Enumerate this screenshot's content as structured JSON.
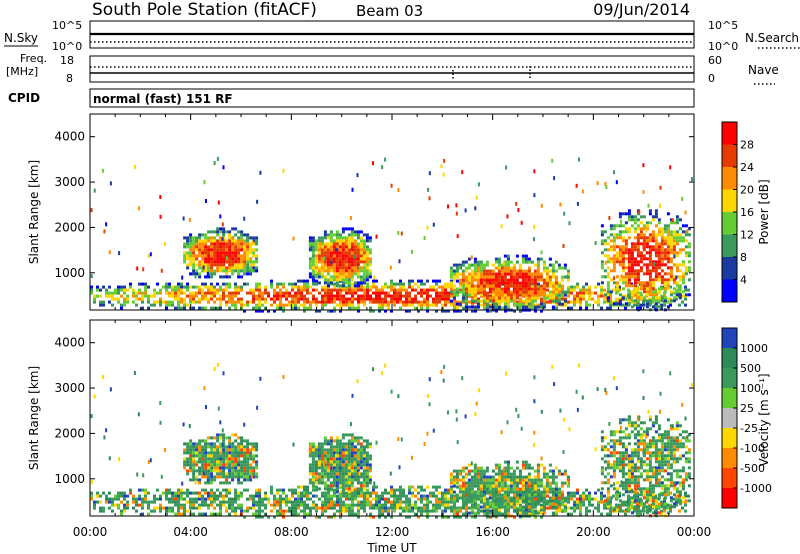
{
  "header": {
    "station": "South Pole Station (fitACF)",
    "beam": "Beam 03",
    "date": "09/Jun/2014"
  },
  "strips": {
    "nsky": {
      "left_label": "N.Sky",
      "right_label": "N.Search",
      "left_ticks": [
        "10^5",
        "10^0"
      ],
      "right_ticks": [
        "10^5",
        "10^0"
      ]
    },
    "freq": {
      "left_label": "Freq.",
      "left_unit": "[MHz]",
      "right_label": "Nave",
      "left_ticks": [
        "18",
        "8"
      ],
      "right_ticks": [
        "60",
        "0"
      ]
    },
    "cpid": {
      "label": "CPID",
      "text": "normal (fast) 151 RF"
    }
  },
  "chart_data": [
    {
      "type": "heatmap",
      "name": "power",
      "ylabel": "Slant Range [km]",
      "xlabel": "",
      "xlim": [
        0,
        24
      ],
      "ylim": [
        180,
        4500
      ],
      "x_tick_labels": [
        "00:00",
        "04:00",
        "08:00",
        "12:00",
        "16:00",
        "20:00",
        "00:00"
      ],
      "y_ticks": [
        1000,
        2000,
        3000,
        4000
      ],
      "colorbar": {
        "label": "Power [dB]",
        "ticks": [
          "28",
          "24",
          "20",
          "16",
          "12",
          "8",
          "4"
        ],
        "colors": [
          "#ff0000",
          "#e63b00",
          "#ff8c00",
          "#ffd700",
          "#66cc33",
          "#3a9a5c",
          "#1a3aa0",
          "#0000ff"
        ]
      },
      "features": [
        {
          "t0": 0.0,
          "t1": 23.8,
          "r0": 180,
          "r1": 850,
          "level": 0.35
        },
        {
          "t0": 3.7,
          "t1": 6.6,
          "r0": 900,
          "r1": 2000,
          "level": 0.55
        },
        {
          "t0": 8.7,
          "t1": 11.2,
          "r0": 700,
          "r1": 2000,
          "level": 0.6
        },
        {
          "t0": 14.3,
          "t1": 19.0,
          "r0": 200,
          "r1": 1400,
          "level": 0.45
        },
        {
          "t0": 20.3,
          "t1": 23.8,
          "r0": 200,
          "r1": 2400,
          "level": 0.3
        }
      ]
    },
    {
      "type": "heatmap",
      "name": "velocity",
      "ylabel": "Slant Range [km]",
      "xlabel": "Time UT",
      "xlim": [
        0,
        24
      ],
      "ylim": [
        180,
        4500
      ],
      "x_tick_labels": [
        "00:00",
        "04:00",
        "08:00",
        "12:00",
        "16:00",
        "20:00",
        "00:00"
      ],
      "y_ticks": [
        1000,
        2000,
        3000,
        4000
      ],
      "colorbar": {
        "label": "Velocity [m s⁻¹]",
        "ticks": [
          "1000",
          "500",
          "100",
          "25",
          "-25",
          "-100",
          "-500",
          "-1000"
        ],
        "colors": [
          "#2244bb",
          "#2e8b57",
          "#3a9a5c",
          "#66cc33",
          "#bbbbbb",
          "#ffd700",
          "#ff8c00",
          "#ff4500",
          "#ff0000"
        ]
      },
      "features": [
        {
          "t0": 0.0,
          "t1": 23.8,
          "r0": 180,
          "r1": 850,
          "level": 0.35
        },
        {
          "t0": 3.7,
          "t1": 6.6,
          "r0": 900,
          "r1": 2000,
          "level": 0.55
        },
        {
          "t0": 8.7,
          "t1": 11.2,
          "r0": 700,
          "r1": 2000,
          "level": 0.6
        },
        {
          "t0": 14.3,
          "t1": 19.0,
          "r0": 200,
          "r1": 1400,
          "level": 0.45
        },
        {
          "t0": 20.3,
          "t1": 23.8,
          "r0": 200,
          "r1": 2400,
          "level": 0.3
        }
      ]
    }
  ]
}
